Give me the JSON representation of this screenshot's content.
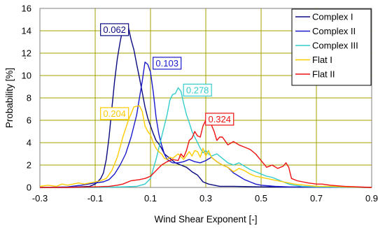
{
  "chart_data": {
    "type": "line",
    "title": "",
    "xlabel": "Wind Shear Exponent [-]",
    "ylabel": "Probability [%]",
    "ylabel_suffix": ".",
    "xlim": [
      -0.3,
      0.9
    ],
    "ylim": [
      0,
      16
    ],
    "x_ticks": [
      "-0.3",
      "-0.1",
      "0.1",
      "0.3",
      "0.5",
      "0.7",
      "0.9"
    ],
    "y_ticks": [
      "0",
      "2",
      "4",
      "6",
      "8",
      "10",
      "12",
      "14",
      "16"
    ],
    "grid": true,
    "legend_position": "top-right",
    "series": [
      {
        "name": "Complex I",
        "color": "#0a0a80",
        "points": [
          [
            -0.3,
            0
          ],
          [
            -0.2,
            0
          ],
          [
            -0.12,
            0.1
          ],
          [
            -0.1,
            0.3
          ],
          [
            -0.08,
            0.8
          ],
          [
            -0.07,
            1.3
          ],
          [
            -0.06,
            2.5
          ],
          [
            -0.05,
            4.5
          ],
          [
            -0.04,
            7
          ],
          [
            -0.03,
            9.5
          ],
          [
            -0.02,
            11.5
          ],
          [
            -0.01,
            13
          ],
          [
            0.0,
            14.2
          ],
          [
            0.01,
            14.5
          ],
          [
            0.02,
            14.3
          ],
          [
            0.03,
            13.2
          ],
          [
            0.04,
            12.3
          ],
          [
            0.05,
            11
          ],
          [
            0.06,
            9.8
          ],
          [
            0.07,
            8.5
          ],
          [
            0.08,
            7.2
          ],
          [
            0.09,
            6.2
          ],
          [
            0.1,
            5.5
          ],
          [
            0.11,
            4.8
          ],
          [
            0.12,
            4.2
          ],
          [
            0.13,
            3.9
          ],
          [
            0.14,
            3.5
          ],
          [
            0.15,
            3.0
          ],
          [
            0.17,
            2.6
          ],
          [
            0.19,
            2.2
          ],
          [
            0.21,
            2.0
          ],
          [
            0.23,
            1.8
          ],
          [
            0.25,
            1.4
          ],
          [
            0.27,
            1.1
          ],
          [
            0.29,
            0.5
          ],
          [
            0.31,
            0.3
          ],
          [
            0.33,
            0.2
          ],
          [
            0.35,
            0.1
          ],
          [
            0.4,
            0.1
          ],
          [
            0.5,
            0.05
          ],
          [
            0.9,
            0
          ]
        ]
      },
      {
        "name": "Complex II",
        "color": "#1a1acc",
        "points": [
          [
            -0.3,
            0
          ],
          [
            -0.2,
            0.05
          ],
          [
            -0.15,
            0.2
          ],
          [
            -0.1,
            0.4
          ],
          [
            -0.07,
            0.5
          ],
          [
            -0.05,
            0.7
          ],
          [
            -0.03,
            1.2
          ],
          [
            -0.01,
            2.0
          ],
          [
            0.01,
            3.0
          ],
          [
            0.03,
            4.5
          ],
          [
            0.05,
            6.5
          ],
          [
            0.06,
            8.0
          ],
          [
            0.07,
            9.5
          ],
          [
            0.08,
            11.2
          ],
          [
            0.09,
            11.0
          ],
          [
            0.1,
            10.3
          ],
          [
            0.11,
            8.5
          ],
          [
            0.12,
            6.3
          ],
          [
            0.13,
            4.8
          ],
          [
            0.14,
            3.8
          ],
          [
            0.15,
            3.0
          ],
          [
            0.16,
            2.5
          ],
          [
            0.18,
            2.2
          ],
          [
            0.2,
            2.2
          ],
          [
            0.22,
            2.3
          ],
          [
            0.24,
            2.5
          ],
          [
            0.26,
            2.3
          ],
          [
            0.28,
            2.2
          ],
          [
            0.3,
            2.4
          ],
          [
            0.32,
            2.7
          ],
          [
            0.34,
            2.3
          ],
          [
            0.36,
            2.0
          ],
          [
            0.38,
            1.8
          ],
          [
            0.4,
            1.3
          ],
          [
            0.42,
            1.0
          ],
          [
            0.44,
            0.7
          ],
          [
            0.46,
            0.5
          ],
          [
            0.48,
            0.3
          ],
          [
            0.5,
            0.2
          ],
          [
            0.55,
            0.1
          ],
          [
            0.6,
            0.05
          ],
          [
            0.9,
            0
          ]
        ]
      },
      {
        "name": "Complex III",
        "color": "#33cccc",
        "points": [
          [
            -0.3,
            0
          ],
          [
            -0.1,
            0
          ],
          [
            0.0,
            0.05
          ],
          [
            0.05,
            0.1
          ],
          [
            0.08,
            0.3
          ],
          [
            0.1,
            0.8
          ],
          [
            0.12,
            2.5
          ],
          [
            0.14,
            4.5
          ],
          [
            0.16,
            6.5
          ],
          [
            0.17,
            7.8
          ],
          [
            0.18,
            8.3
          ],
          [
            0.19,
            8.4
          ],
          [
            0.2,
            8.9
          ],
          [
            0.21,
            8.6
          ],
          [
            0.22,
            7.5
          ],
          [
            0.23,
            6.5
          ],
          [
            0.24,
            5.8
          ],
          [
            0.25,
            5.0
          ],
          [
            0.26,
            4.5
          ],
          [
            0.27,
            4.0
          ],
          [
            0.28,
            3.5
          ],
          [
            0.29,
            3.1
          ],
          [
            0.3,
            3.3
          ],
          [
            0.31,
            3.0
          ],
          [
            0.32,
            2.8
          ],
          [
            0.34,
            3.0
          ],
          [
            0.36,
            2.6
          ],
          [
            0.38,
            2.2
          ],
          [
            0.4,
            2.0
          ],
          [
            0.42,
            2.2
          ],
          [
            0.44,
            1.9
          ],
          [
            0.46,
            1.6
          ],
          [
            0.48,
            1.4
          ],
          [
            0.5,
            1.2
          ],
          [
            0.52,
            1.0
          ],
          [
            0.54,
            0.9
          ],
          [
            0.56,
            0.7
          ],
          [
            0.58,
            0.5
          ],
          [
            0.6,
            0.3
          ],
          [
            0.62,
            0.2
          ],
          [
            0.65,
            0.1
          ],
          [
            0.7,
            0.05
          ],
          [
            0.9,
            0
          ]
        ]
      },
      {
        "name": "Flat I",
        "color": "#ffcc00",
        "points": [
          [
            -0.3,
            0.1
          ],
          [
            -0.27,
            0.2
          ],
          [
            -0.24,
            0.1
          ],
          [
            -0.22,
            0.3
          ],
          [
            -0.2,
            0.2
          ],
          [
            -0.18,
            0.3
          ],
          [
            -0.16,
            0.4
          ],
          [
            -0.14,
            0.3
          ],
          [
            -0.12,
            0.4
          ],
          [
            -0.1,
            0.5
          ],
          [
            -0.08,
            0.6
          ],
          [
            -0.06,
            0.8
          ],
          [
            -0.04,
            1.5
          ],
          [
            -0.02,
            2.7
          ],
          [
            0.0,
            4.5
          ],
          [
            0.02,
            6.0
          ],
          [
            0.04,
            7.2
          ],
          [
            0.06,
            7.3
          ],
          [
            0.07,
            6.8
          ],
          [
            0.08,
            5.5
          ],
          [
            0.09,
            5.0
          ],
          [
            0.1,
            4.7
          ],
          [
            0.11,
            4.0
          ],
          [
            0.12,
            3.5
          ],
          [
            0.13,
            3.2
          ],
          [
            0.14,
            3.0
          ],
          [
            0.15,
            2.6
          ],
          [
            0.16,
            2.5
          ],
          [
            0.17,
            2.7
          ],
          [
            0.18,
            2.6
          ],
          [
            0.2,
            3.0
          ],
          [
            0.22,
            2.5
          ],
          [
            0.24,
            3.2
          ],
          [
            0.25,
            2.8
          ],
          [
            0.26,
            3.3
          ],
          [
            0.27,
            3.2
          ],
          [
            0.28,
            2.7
          ],
          [
            0.29,
            3.5
          ],
          [
            0.3,
            2.8
          ],
          [
            0.31,
            3.3
          ],
          [
            0.32,
            2.7
          ],
          [
            0.34,
            2.3
          ],
          [
            0.36,
            2.0
          ],
          [
            0.38,
            1.8
          ],
          [
            0.4,
            1.4
          ],
          [
            0.42,
            1.7
          ],
          [
            0.44,
            1.5
          ],
          [
            0.46,
            1.2
          ],
          [
            0.48,
            1.0
          ],
          [
            0.5,
            0.9
          ],
          [
            0.52,
            0.8
          ],
          [
            0.54,
            0.7
          ],
          [
            0.56,
            0.6
          ],
          [
            0.58,
            0.5
          ],
          [
            0.6,
            0.4
          ],
          [
            0.62,
            0.3
          ],
          [
            0.66,
            0.2
          ],
          [
            0.7,
            0.1
          ],
          [
            0.76,
            0.1
          ],
          [
            0.8,
            0.05
          ],
          [
            0.9,
            0
          ]
        ]
      },
      {
        "name": "Flat II",
        "color": "#ee1111",
        "points": [
          [
            -0.3,
            0
          ],
          [
            -0.2,
            0
          ],
          [
            -0.1,
            0.05
          ],
          [
            -0.05,
            0.1
          ],
          [
            -0.02,
            0.2
          ],
          [
            0.0,
            0.3
          ],
          [
            0.03,
            0.6
          ],
          [
            0.06,
            0.7
          ],
          [
            0.08,
            0.8
          ],
          [
            0.1,
            1.0
          ],
          [
            0.12,
            1.5
          ],
          [
            0.14,
            2.0
          ],
          [
            0.16,
            2.3
          ],
          [
            0.18,
            2.5
          ],
          [
            0.2,
            2.4
          ],
          [
            0.21,
            3.0
          ],
          [
            0.22,
            2.7
          ],
          [
            0.23,
            3.3
          ],
          [
            0.24,
            4.2
          ],
          [
            0.25,
            4.4
          ],
          [
            0.26,
            5.0
          ],
          [
            0.27,
            4.6
          ],
          [
            0.28,
            4.5
          ],
          [
            0.29,
            5.5
          ],
          [
            0.3,
            6.0
          ],
          [
            0.31,
            6.2
          ],
          [
            0.32,
            5.6
          ],
          [
            0.33,
            5.0
          ],
          [
            0.34,
            4.2
          ],
          [
            0.35,
            4.5
          ],
          [
            0.36,
            4.5
          ],
          [
            0.38,
            3.8
          ],
          [
            0.4,
            4.1
          ],
          [
            0.42,
            3.8
          ],
          [
            0.44,
            3.6
          ],
          [
            0.46,
            3.4
          ],
          [
            0.48,
            3.0
          ],
          [
            0.5,
            2.4
          ],
          [
            0.52,
            1.8
          ],
          [
            0.54,
            2.0
          ],
          [
            0.56,
            1.7
          ],
          [
            0.58,
            1.9
          ],
          [
            0.59,
            2.2
          ],
          [
            0.6,
            1.8
          ],
          [
            0.61,
            0.8
          ],
          [
            0.63,
            0.6
          ],
          [
            0.65,
            0.5
          ],
          [
            0.67,
            0.4
          ],
          [
            0.7,
            0.3
          ],
          [
            0.72,
            0.3
          ],
          [
            0.75,
            0.2
          ],
          [
            0.8,
            0.1
          ],
          [
            0.85,
            0.05
          ],
          [
            0.9,
            0
          ]
        ]
      }
    ],
    "annotations": [
      {
        "text": "0.062",
        "series": "Complex I",
        "x": -0.03,
        "y": 14.1,
        "color": "#0a0a80"
      },
      {
        "text": "0.103",
        "series": "Complex II",
        "x": 0.16,
        "y": 11.1,
        "color": "#1a1acc"
      },
      {
        "text": "0.278",
        "series": "Complex III",
        "x": 0.27,
        "y": 8.7,
        "color": "#33cccc"
      },
      {
        "text": "0.204",
        "series": "Flat I",
        "x": -0.03,
        "y": 6.6,
        "color": "#ffcc00"
      },
      {
        "text": "0.324",
        "series": "Flat II",
        "x": 0.35,
        "y": 6.1,
        "color": "#ee1111"
      }
    ]
  }
}
